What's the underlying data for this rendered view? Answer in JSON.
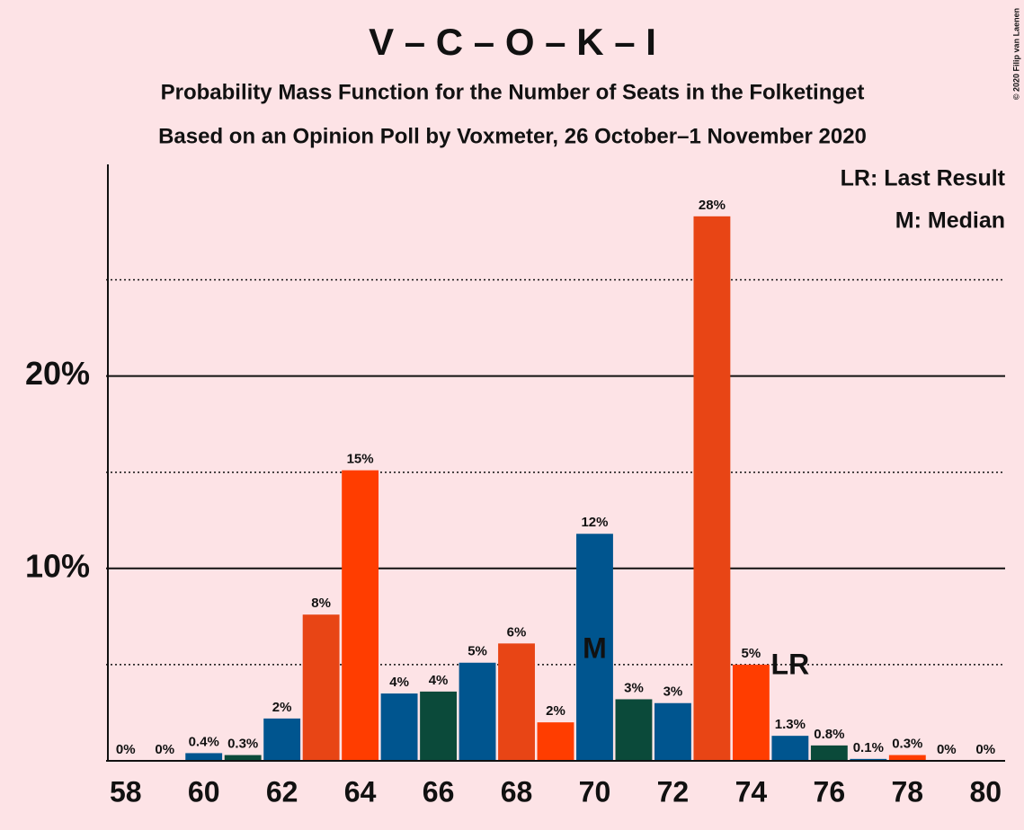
{
  "chart_data": {
    "type": "bar",
    "title": "V – C – O – K – I",
    "subtitle": "Probability Mass Function for the Number of Seats in the Folketinget",
    "subtitle2": "Based on an Opinion Poll by Voxmeter, 26 October–1 November 2020",
    "copyright": "© 2020 Filip van Laenen",
    "legend": [
      "LR: Last Result",
      "M: Median"
    ],
    "x": [
      58,
      59,
      60,
      61,
      62,
      63,
      64,
      65,
      66,
      67,
      68,
      69,
      70,
      71,
      72,
      73,
      74,
      75,
      76,
      77,
      78,
      79,
      80
    ],
    "values": [
      0,
      0,
      0.4,
      0.3,
      2.2,
      7.6,
      15.1,
      3.5,
      3.6,
      5.1,
      6.1,
      2.0,
      11.8,
      3.2,
      3.0,
      28.3,
      5.0,
      1.3,
      0.8,
      0.1,
      0.3,
      0,
      0
    ],
    "value_labels": [
      "0%",
      "0%",
      "0.4%",
      "0.3%",
      "2%",
      "8%",
      "15%",
      "4%",
      "4%",
      "5%",
      "6%",
      "2%",
      "12%",
      "3%",
      "3%",
      "28%",
      "5%",
      "1.3%",
      "0.8%",
      "0.1%",
      "0.3%",
      "0%",
      "0%"
    ],
    "colors": [
      "#00558f",
      "#0b4a3a",
      "#00558f",
      "#0b4a3a",
      "#00558f",
      "#e84515",
      "#ff3d00",
      "#00558f",
      "#0b4a3a",
      "#00558f",
      "#e84515",
      "#ff3d00",
      "#00558f",
      "#0b4a3a",
      "#00558f",
      "#e84515",
      "#ff3d00",
      "#00558f",
      "#0b4a3a",
      "#00558f",
      "#ff3d00",
      "#00558f",
      "#0b4a3a"
    ],
    "xlim": [
      57.5,
      80.5
    ],
    "xticks": [
      58,
      60,
      62,
      64,
      66,
      68,
      70,
      72,
      74,
      76,
      78,
      80
    ],
    "ylim": [
      0,
      31
    ],
    "yticks": [
      {
        "value": 10,
        "label": "10%"
      },
      {
        "value": 20,
        "label": "20%"
      }
    ],
    "minor_yticks": [
      5,
      15,
      25
    ],
    "annotations": [
      {
        "x": 70,
        "text": "M"
      },
      {
        "x": 75,
        "text": "LR"
      }
    ]
  }
}
